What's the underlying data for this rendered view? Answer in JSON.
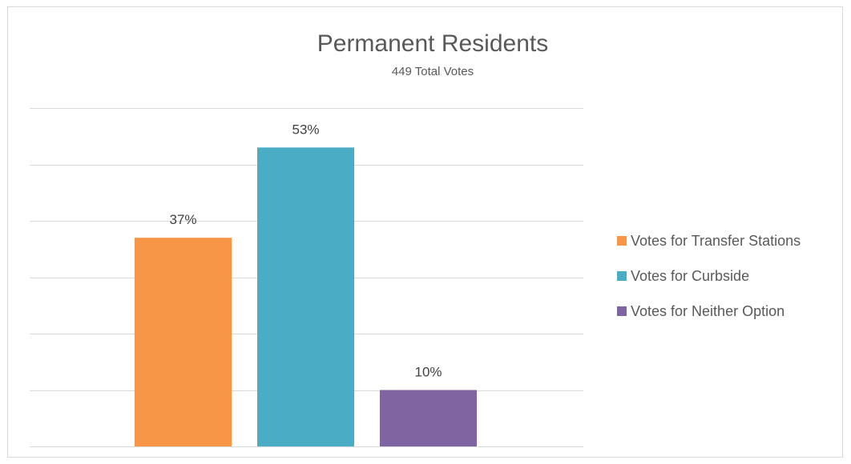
{
  "chart_data": {
    "type": "bar",
    "title": "Permanent Residents",
    "subtitle": "449 Total Votes",
    "categories": [
      "Votes for Transfer Stations",
      "Votes for Curbside",
      "Votes for Neither Option"
    ],
    "values": [
      37,
      53,
      10
    ],
    "value_labels": [
      "37%",
      "53%",
      "10%"
    ],
    "colors": [
      "#F79646",
      "#4BACC6",
      "#8064A2"
    ],
    "ylim": [
      0,
      60
    ],
    "y_gridline_step": 10,
    "y_tick_labels_shown": false,
    "grid": true,
    "legend_position": "right",
    "legend": [
      {
        "name": "Votes for Transfer Stations",
        "color": "#F79646"
      },
      {
        "name": "Votes for Curbside",
        "color": "#4BACC6"
      },
      {
        "name": "Votes for Neither Option",
        "color": "#8064A2"
      }
    ]
  }
}
